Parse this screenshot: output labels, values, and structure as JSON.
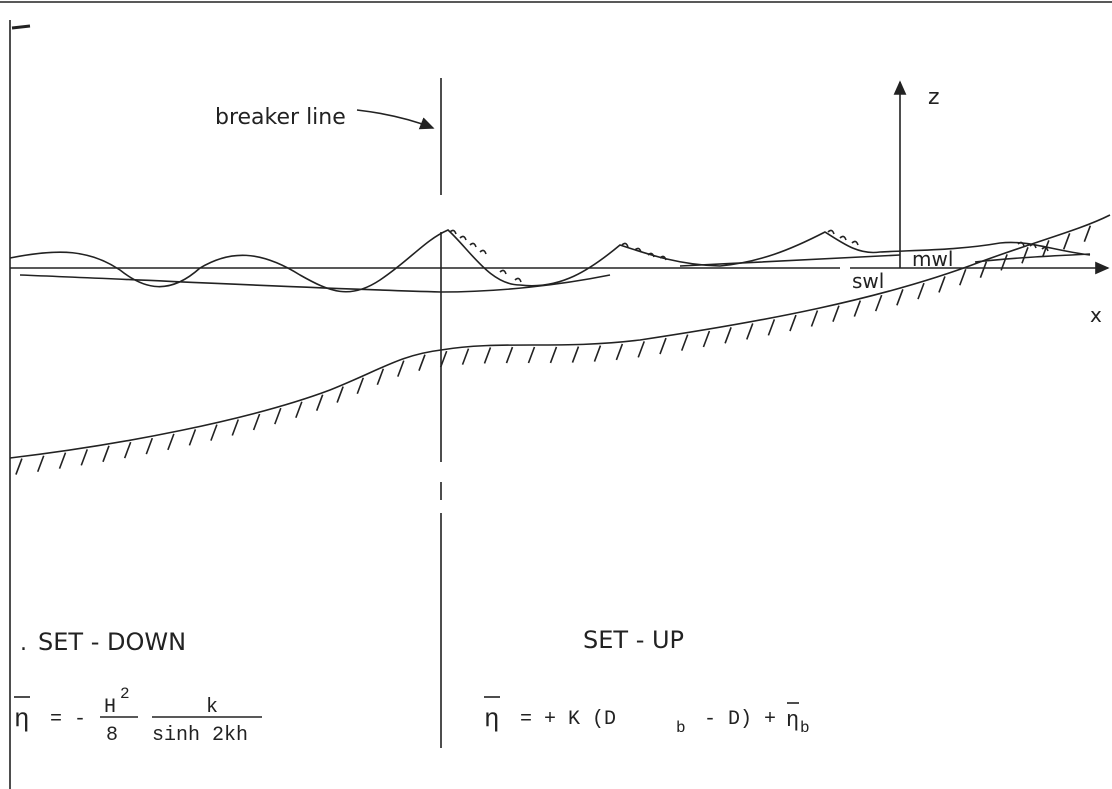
{
  "labels": {
    "breaker_line": "breaker line",
    "z": "z",
    "x": "x",
    "mwl": "mwl",
    "swl": "swl"
  },
  "set_down": {
    "title": "SET - DOWN",
    "formula": {
      "eta": "η",
      "eq": "= -",
      "num": "H",
      "sup": "2",
      "den": "8",
      "frac_num": "k",
      "frac_den": "sinh 2kh"
    }
  },
  "set_up": {
    "title": "SET - UP",
    "formula": {
      "eta": "η",
      "eq": "= + K (D",
      "sub1": "b",
      "mid": "- D) +",
      "eta2": "η",
      "sub2": "b"
    }
  }
}
